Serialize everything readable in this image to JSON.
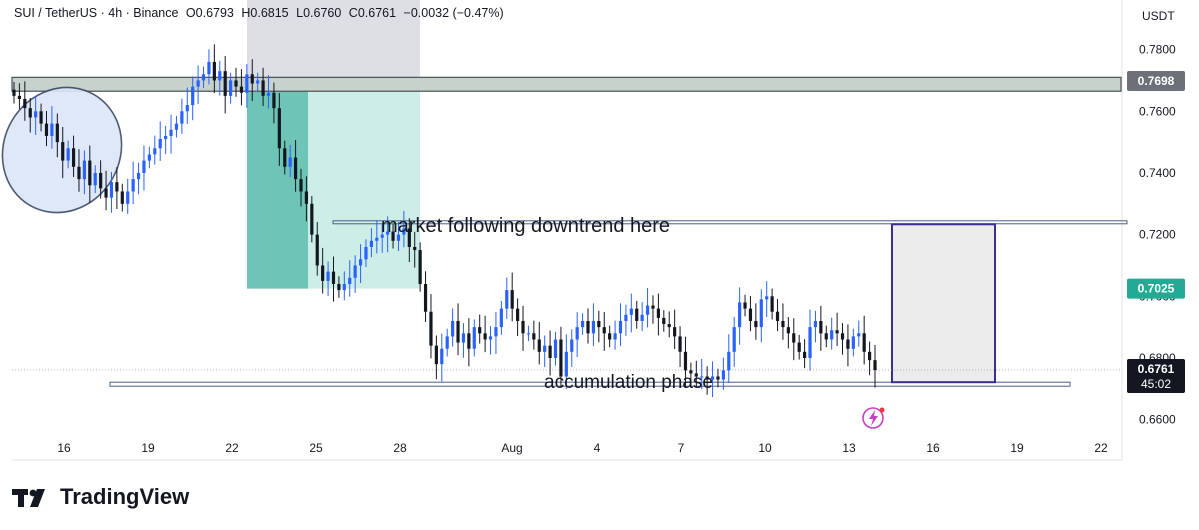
{
  "header": {
    "symbol": "SUI / TetherUS · 4h · Binance",
    "open": "O0.6793",
    "high": "H0.6815",
    "low": "L0.6760",
    "close": "C0.6761",
    "change": "−0.0032 (−0.47%)"
  },
  "axis": {
    "currency": "USDT",
    "y_ticks": [
      "0.7800",
      "0.7600",
      "0.7400",
      "0.7200",
      "0.7000",
      "0.6800",
      "0.6600"
    ],
    "x_ticks": [
      "16",
      "19",
      "22",
      "25",
      "28",
      "Aug",
      "4",
      "7",
      "10",
      "13",
      "16",
      "19",
      "22"
    ]
  },
  "price_labels": {
    "resistance": "0.7698",
    "target": "0.7025",
    "last_price": "0.6761",
    "countdown": "45:02"
  },
  "annotations": {
    "downtrend": "market following downtrend here",
    "accumulation": "accumulation phase"
  },
  "branding": {
    "wordmark": "TradingView"
  },
  "colors": {
    "up": "#2962ff",
    "down": "#131722",
    "resistance_fill": "#c8d2cc",
    "short_zone_dark": "#4db6a4",
    "short_zone_light": "#cdeee6",
    "target_label": "#22ab94",
    "projection_box": "#3c2e8f"
  },
  "chart_data": {
    "type": "candlestick",
    "pair": "SUI / TetherUS",
    "timeframe": "4h",
    "ylim": [
      0.656,
      0.787
    ],
    "x_range_days": [
      "Jul 14",
      "Aug 23"
    ],
    "resistance_zone": [
      0.7665,
      0.771
    ],
    "range_high": 0.724,
    "range_low": 0.6715,
    "target_level": 0.7025,
    "last_close": 0.6761,
    "closes": [
      0.765,
      0.764,
      0.761,
      0.758,
      0.76,
      0.756,
      0.752,
      0.756,
      0.75,
      0.744,
      0.748,
      0.742,
      0.738,
      0.744,
      0.736,
      0.74,
      0.735,
      0.732,
      0.737,
      0.734,
      0.73,
      0.734,
      0.738,
      0.74,
      0.744,
      0.746,
      0.748,
      0.751,
      0.752,
      0.754,
      0.756,
      0.76,
      0.762,
      0.768,
      0.77,
      0.772,
      0.776,
      0.77,
      0.773,
      0.765,
      0.77,
      0.768,
      0.766,
      0.772,
      0.769,
      0.77,
      0.765,
      0.766,
      0.761,
      0.748,
      0.742,
      0.745,
      0.738,
      0.734,
      0.73,
      0.72,
      0.71,
      0.705,
      0.708,
      0.704,
      0.702,
      0.704,
      0.706,
      0.71,
      0.712,
      0.716,
      0.718,
      0.719,
      0.72,
      0.721,
      0.718,
      0.72,
      0.722,
      0.716,
      0.715,
      0.704,
      0.695,
      0.684,
      0.678,
      0.683,
      0.687,
      0.692,
      0.685,
      0.688,
      0.683,
      0.69,
      0.688,
      0.686,
      0.687,
      0.69,
      0.696,
      0.702,
      0.696,
      0.692,
      0.688,
      0.688,
      0.686,
      0.682,
      0.684,
      0.68,
      0.686,
      0.674,
      0.682,
      0.686,
      0.69,
      0.692,
      0.688,
      0.692,
      0.69,
      0.688,
      0.686,
      0.688,
      0.692,
      0.694,
      0.696,
      0.692,
      0.694,
      0.697,
      0.696,
      0.693,
      0.691,
      0.69,
      0.687,
      0.682,
      0.676,
      0.675,
      0.674,
      0.674,
      0.673,
      0.674,
      0.673,
      0.676,
      0.682,
      0.69,
      0.698,
      0.696,
      0.692,
      0.69,
      0.699,
      0.7,
      0.695,
      0.692,
      0.69,
      0.688,
      0.685,
      0.682,
      0.68,
      0.69,
      0.692,
      0.688,
      0.686,
      0.689,
      0.688,
      0.686,
      0.683,
      0.687,
      0.688,
      0.682,
      0.6793,
      0.6761
    ]
  }
}
